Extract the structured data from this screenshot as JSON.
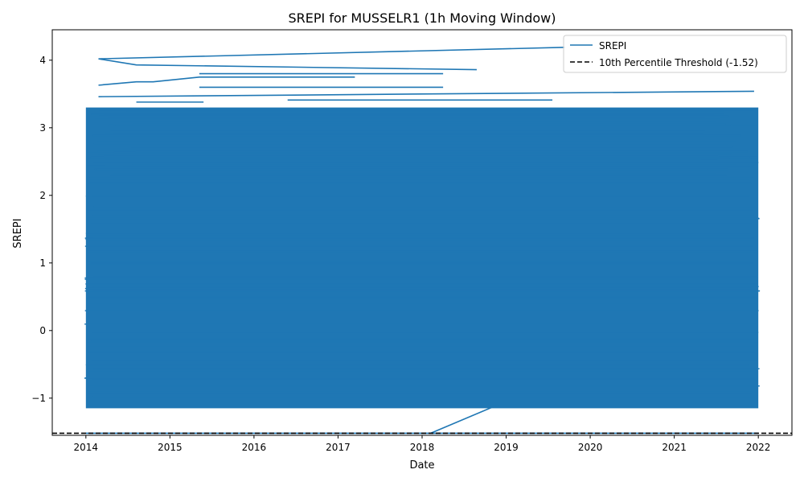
{
  "chart_data": {
    "type": "line",
    "title": "SREPI for MUSSELR1 (1h Moving Window)",
    "xlabel": "Date",
    "ylabel": "SREPI",
    "xlim": [
      2013.6,
      2022.4
    ],
    "ylim": [
      -1.55,
      4.45
    ],
    "x_ticks": [
      2014,
      2015,
      2016,
      2017,
      2018,
      2019,
      2020,
      2021,
      2022
    ],
    "x_tick_labels": [
      "2014",
      "2015",
      "2016",
      "2017",
      "2018",
      "2019",
      "2020",
      "2021",
      "2022"
    ],
    "y_ticks": [
      -1,
      0,
      1,
      2,
      3,
      4
    ],
    "y_tick_labels": [
      "−1",
      "0",
      "1",
      "2",
      "3",
      "4"
    ],
    "grid": false,
    "legend_position": "top-right",
    "colors": {
      "series": "#1f77b4",
      "threshold": "#000000"
    },
    "series": [
      {
        "name": "SREPI",
        "style": "solid",
        "fill_band": {
          "x": [
            2014.0,
            2022.0
          ],
          "y": [
            -1.15,
            3.3
          ]
        },
        "upper_lines": [
          {
            "x": [
              2014.15,
              2019.7
            ],
            "y": [
              4.02,
              4.19
            ]
          },
          {
            "x": [
              2014.15,
              2014.6,
              2018.65
            ],
            "y": [
              4.02,
              3.93,
              3.86
            ]
          },
          {
            "x": [
              2014.15,
              2014.6,
              2014.8,
              2015.35,
              2017.2
            ],
            "y": [
              3.63,
              3.68,
              3.68,
              3.75,
              3.75
            ]
          },
          {
            "x": [
              2015.35,
              2018.25
            ],
            "y": [
              3.6,
              3.6
            ]
          },
          {
            "x": [
              2015.35,
              2018.25
            ],
            "y": [
              3.8,
              3.8
            ]
          },
          {
            "x": [
              2014.15,
              2021.95
            ],
            "y": [
              3.46,
              3.54
            ]
          },
          {
            "x": [
              2016.4,
              2019.55
            ],
            "y": [
              3.41,
              3.41
            ]
          },
          {
            "x": [
              2014.6,
              2015.4
            ],
            "y": [
              3.38,
              3.38
            ]
          },
          {
            "x": [
              2014.15,
              2021.95
            ],
            "y": [
              3.26,
              3.26
            ]
          },
          {
            "x": [
              2014.15,
              2021.65
            ],
            "y": [
              3.17,
              3.17
            ]
          }
        ],
        "drop_line": {
          "x": [
            2018.1,
            2018.9
          ],
          "y": [
            -1.52,
            -1.1
          ]
        },
        "floor_line": {
          "x": [
            2014.0,
            2022.0
          ],
          "y": [
            -1.52,
            -1.52
          ]
        }
      },
      {
        "name": "10th Percentile Threshold (-1.52)",
        "style": "dashed",
        "value": -1.52
      }
    ]
  }
}
